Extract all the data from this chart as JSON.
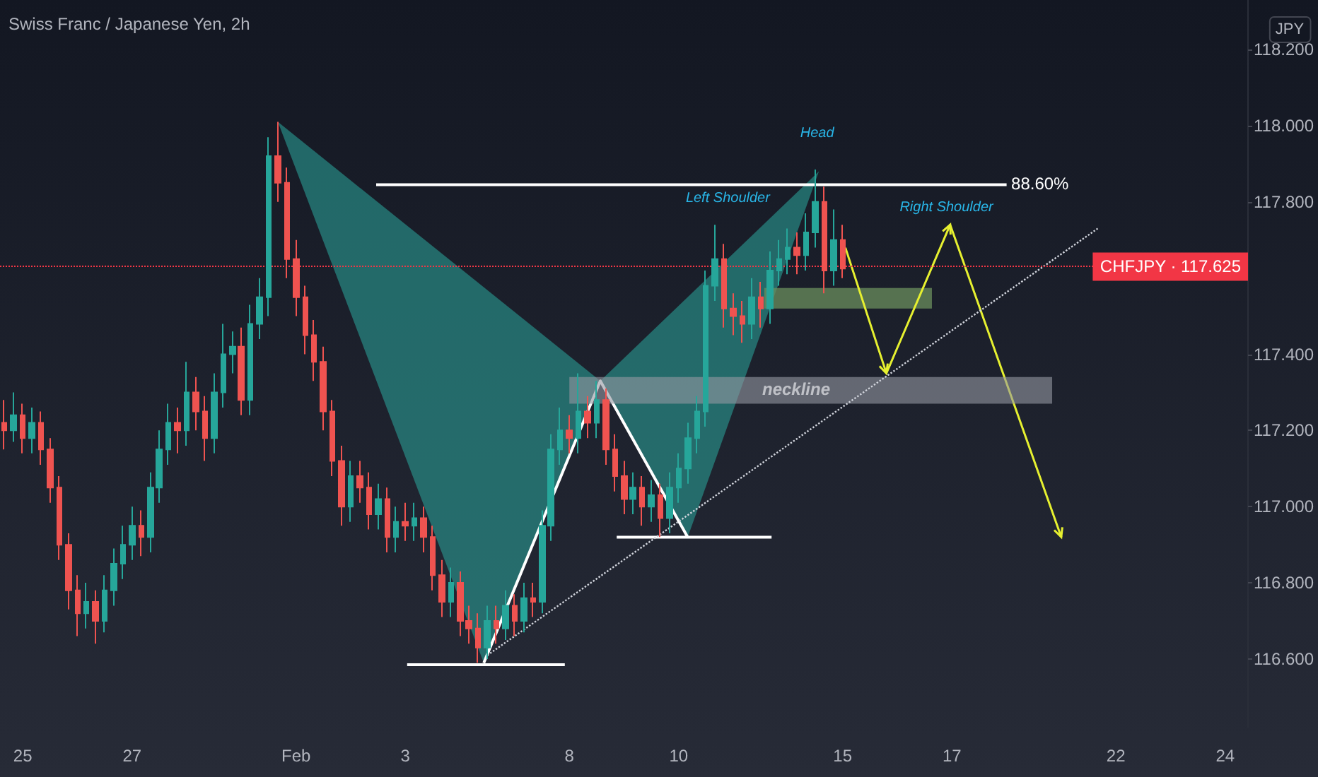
{
  "chart_data": {
    "type": "candlestick",
    "title": "Swiss Franc / Japanese Yen, 2h",
    "annotations": [
      "JPY",
      "Head",
      "Left Shoulder",
      "Right Shoulder",
      "88.60%",
      "neckline"
    ],
    "categories": [
      null,
      null,
      "25",
      null,
      null,
      null,
      null,
      null,
      null,
      null,
      null,
      null,
      null,
      null,
      "27",
      null,
      null,
      null,
      null,
      null,
      null,
      null,
      null,
      null,
      null,
      null,
      null,
      null,
      null,
      null,
      null,
      null,
      "Feb",
      null,
      null,
      null,
      null,
      null,
      null,
      null,
      null,
      null,
      null,
      null,
      "3",
      null,
      null,
      null,
      null,
      null,
      null,
      null,
      null,
      null,
      null,
      null,
      null,
      null,
      null,
      null,
      null,
      null,
      "8",
      null,
      null,
      null,
      null,
      null,
      null,
      null,
      null,
      null,
      null,
      null,
      "10",
      null,
      null,
      null,
      null,
      null,
      null,
      null,
      null,
      null,
      null,
      null,
      null,
      null,
      null,
      null,
      null,
      null,
      "15",
      null,
      null,
      null,
      null,
      null,
      null,
      null,
      null,
      null,
      null,
      null,
      "17",
      null,
      null,
      null,
      null,
      null,
      null,
      null,
      null,
      null,
      null,
      null,
      null,
      null,
      null,
      null,
      null,
      null,
      "22",
      null,
      null,
      null,
      null,
      null,
      null,
      null,
      null,
      null,
      null,
      null,
      "24",
      null,
      null
    ],
    "ohlc": [
      [
        117.22,
        117.28,
        117.15,
        117.2
      ],
      [
        117.2,
        117.3,
        117.17,
        117.24
      ],
      [
        117.24,
        117.27,
        117.14,
        117.18
      ],
      [
        117.18,
        117.26,
        117.14,
        117.22
      ],
      [
        117.22,
        117.25,
        117.11,
        117.15
      ],
      [
        117.15,
        117.18,
        117.01,
        117.05
      ],
      [
        117.05,
        117.08,
        116.86,
        116.9
      ],
      [
        116.9,
        116.93,
        116.73,
        116.78
      ],
      [
        116.78,
        116.82,
        116.66,
        116.72
      ],
      [
        116.72,
        116.8,
        116.68,
        116.75
      ],
      [
        116.75,
        116.78,
        116.64,
        116.7
      ],
      [
        116.7,
        116.82,
        116.67,
        116.78
      ],
      [
        116.78,
        116.89,
        116.74,
        116.85
      ],
      [
        116.85,
        116.95,
        116.81,
        116.9
      ],
      [
        116.9,
        117.0,
        116.86,
        116.95
      ],
      [
        116.95,
        116.99,
        116.87,
        116.92
      ],
      [
        116.92,
        117.09,
        116.88,
        117.05
      ],
      [
        117.05,
        117.2,
        117.01,
        117.15
      ],
      [
        117.15,
        117.27,
        117.11,
        117.22
      ],
      [
        117.22,
        117.26,
        117.14,
        117.2
      ],
      [
        117.2,
        117.38,
        117.16,
        117.3
      ],
      [
        117.3,
        117.34,
        117.2,
        117.25
      ],
      [
        117.25,
        117.29,
        117.12,
        117.18
      ],
      [
        117.18,
        117.35,
        117.14,
        117.3
      ],
      [
        117.3,
        117.48,
        117.26,
        117.4
      ],
      [
        117.4,
        117.46,
        117.35,
        117.42
      ],
      [
        117.42,
        117.47,
        117.24,
        117.28
      ],
      [
        117.28,
        117.53,
        117.24,
        117.48
      ],
      [
        117.48,
        117.6,
        117.44,
        117.55
      ],
      [
        117.55,
        117.97,
        117.5,
        117.92
      ],
      [
        117.92,
        118.01,
        117.8,
        117.85
      ],
      [
        117.85,
        117.89,
        117.6,
        117.65
      ],
      [
        117.65,
        117.7,
        117.5,
        117.55
      ],
      [
        117.55,
        117.58,
        117.4,
        117.45
      ],
      [
        117.45,
        117.49,
        117.33,
        117.38
      ],
      [
        117.38,
        117.42,
        117.2,
        117.25
      ],
      [
        117.25,
        117.28,
        117.08,
        117.12
      ],
      [
        117.12,
        117.16,
        116.95,
        117.0
      ],
      [
        117.0,
        117.12,
        116.96,
        117.08
      ],
      [
        117.08,
        117.12,
        117.01,
        117.05
      ],
      [
        117.05,
        117.09,
        116.94,
        116.98
      ],
      [
        116.98,
        117.06,
        116.94,
        117.02
      ],
      [
        117.02,
        117.05,
        116.88,
        116.92
      ],
      [
        116.92,
        117.0,
        116.88,
        116.96
      ],
      [
        116.96,
        117.01,
        116.91,
        116.95
      ],
      [
        116.95,
        117.01,
        116.91,
        116.97
      ],
      [
        116.97,
        117.0,
        116.88,
        116.92
      ],
      [
        116.92,
        116.95,
        116.78,
        116.82
      ],
      [
        116.82,
        116.86,
        116.71,
        116.75
      ],
      [
        116.75,
        116.84,
        116.71,
        116.8
      ],
      [
        116.8,
        116.83,
        116.66,
        116.7
      ],
      [
        116.7,
        116.74,
        116.64,
        116.68
      ],
      [
        116.68,
        116.72,
        116.59,
        116.63
      ],
      [
        116.63,
        116.74,
        116.6,
        116.7
      ],
      [
        116.7,
        116.74,
        116.64,
        116.68
      ],
      [
        116.68,
        116.78,
        116.65,
        116.74
      ],
      [
        116.74,
        116.77,
        116.66,
        116.7
      ],
      [
        116.7,
        116.8,
        116.67,
        116.76
      ],
      [
        116.76,
        116.8,
        116.71,
        116.75
      ],
      [
        116.75,
        116.99,
        116.72,
        116.95
      ],
      [
        116.95,
        117.19,
        116.91,
        117.15
      ],
      [
        117.15,
        117.26,
        117.11,
        117.2
      ],
      [
        117.2,
        117.24,
        117.14,
        117.18
      ],
      [
        117.18,
        117.35,
        117.14,
        117.25
      ],
      [
        117.25,
        117.29,
        117.18,
        117.22
      ],
      [
        117.22,
        117.33,
        117.18,
        117.28
      ],
      [
        117.28,
        117.31,
        117.11,
        117.15
      ],
      [
        117.15,
        117.19,
        117.04,
        117.08
      ],
      [
        117.08,
        117.12,
        116.98,
        117.02
      ],
      [
        117.02,
        117.09,
        116.98,
        117.05
      ],
      [
        117.05,
        117.08,
        116.95,
        117.0
      ],
      [
        117.0,
        117.07,
        116.96,
        117.03
      ],
      [
        117.03,
        117.06,
        116.92,
        116.97
      ],
      [
        116.97,
        117.09,
        116.93,
        117.05
      ],
      [
        117.05,
        117.14,
        117.01,
        117.1
      ],
      [
        117.1,
        117.22,
        117.06,
        117.18
      ],
      [
        117.18,
        117.29,
        117.14,
        117.25
      ],
      [
        117.25,
        117.62,
        117.21,
        117.58
      ],
      [
        117.58,
        117.74,
        117.54,
        117.65
      ],
      [
        117.65,
        117.69,
        117.47,
        117.52
      ],
      [
        117.52,
        117.56,
        117.45,
        117.5
      ],
      [
        117.5,
        117.54,
        117.43,
        117.48
      ],
      [
        117.48,
        117.6,
        117.44,
        117.55
      ],
      [
        117.55,
        117.59,
        117.47,
        117.52
      ],
      [
        117.52,
        117.67,
        117.48,
        117.62
      ],
      [
        117.62,
        117.7,
        117.58,
        117.65
      ],
      [
        117.65,
        117.73,
        117.61,
        117.68
      ],
      [
        117.68,
        117.72,
        117.61,
        117.66
      ],
      [
        117.66,
        117.77,
        117.62,
        117.72
      ],
      [
        117.72,
        117.885,
        117.68,
        117.8
      ],
      [
        117.8,
        117.84,
        117.56,
        117.62
      ],
      [
        117.62,
        117.78,
        117.58,
        117.7
      ],
      [
        117.7,
        117.74,
        117.6,
        117.625
      ],
      null,
      null,
      null,
      null,
      null,
      null,
      null,
      null,
      null,
      null,
      null,
      null,
      null,
      null,
      null,
      null,
      null,
      null,
      null,
      null,
      null,
      null,
      null,
      null,
      null,
      null,
      null,
      null,
      null,
      null,
      null,
      null,
      null,
      null,
      null,
      null,
      null,
      null,
      null,
      null,
      null,
      null,
      null,
      null
    ],
    "colors": [
      "#ef5350",
      "#26a69a",
      "#ef5350",
      "#26a69a",
      "#ef5350",
      "#ef5350",
      "#ef5350",
      "#ef5350",
      "#ef5350",
      "#26a69a",
      "#ef5350",
      "#26a69a",
      "#26a69a",
      "#26a69a",
      "#26a69a",
      "#ef5350",
      "#26a69a",
      "#26a69a",
      "#26a69a",
      "#ef5350",
      "#26a69a",
      "#ef5350",
      "#ef5350",
      "#26a69a",
      "#26a69a",
      "#26a69a",
      "#ef5350",
      "#26a69a",
      "#26a69a",
      "#26a69a",
      "#ef5350",
      "#ef5350",
      "#ef5350",
      "#ef5350",
      "#ef5350",
      "#ef5350",
      "#ef5350",
      "#ef5350",
      "#26a69a",
      "#ef5350",
      "#ef5350",
      "#26a69a",
      "#ef5350",
      "#26a69a",
      "#ef5350",
      "#26a69a",
      "#ef5350",
      "#ef5350",
      "#ef5350",
      "#26a69a",
      "#ef5350",
      "#ef5350",
      "#ef5350",
      "#26a69a",
      "#ef5350",
      "#26a69a",
      "#ef5350",
      "#26a69a",
      "#ef5350",
      "#26a69a",
      "#26a69a",
      "#26a69a",
      "#ef5350",
      "#26a69a",
      "#ef5350",
      "#26a69a",
      "#ef5350",
      "#ef5350",
      "#ef5350",
      "#26a69a",
      "#ef5350",
      "#26a69a",
      "#ef5350",
      "#26a69a",
      "#26a69a",
      "#26a69a",
      "#26a69a",
      "#26a69a",
      "#26a69a",
      "#ef5350",
      "#ef5350",
      "#ef5350",
      "#26a69a",
      "#ef5350",
      "#26a69a",
      "#26a69a",
      "#26a69a",
      "#ef5350",
      "#26a69a",
      "#26a69a",
      "#ef5350",
      "#26a69a",
      "#ef5350",
      null,
      null,
      null,
      null,
      null,
      null,
      null,
      null,
      null,
      null,
      null,
      null,
      null,
      null,
      null,
      null,
      null,
      null,
      null,
      null,
      null,
      null,
      null,
      null,
      null,
      null,
      null,
      null,
      null,
      null,
      null,
      null,
      null,
      null,
      null,
      null,
      null,
      null,
      null,
      null,
      null,
      null,
      null,
      null
    ],
    "series": [
      {
        "type": "line",
        "color": "#d1d4dc",
        "line_style": "dotted",
        "values": [
          null,
          null,
          null,
          null,
          null,
          null,
          null,
          null,
          null,
          null,
          null,
          null,
          null,
          null,
          null,
          null,
          null,
          null,
          null,
          null,
          null,
          null,
          null,
          null,
          null,
          null,
          null,
          null,
          null,
          null,
          null,
          null,
          null,
          null,
          null,
          null,
          null,
          null,
          null,
          null,
          null,
          null,
          null,
          null,
          null,
          null,
          null,
          null,
          null,
          null,
          null,
          null,
          null,
          116.61,
          null,
          null,
          null,
          null,
          null,
          null,
          null,
          null,
          null,
          null,
          null,
          null,
          null,
          null,
          null,
          null,
          null,
          null,
          null,
          null,
          null,
          null,
          null,
          null,
          null,
          null,
          null,
          null,
          null,
          null,
          null,
          null,
          null,
          null,
          null,
          null,
          null,
          null,
          null,
          null,
          null,
          null,
          null,
          null,
          null,
          null,
          null,
          null,
          null,
          null,
          null,
          null,
          null,
          null,
          null,
          null,
          null,
          null,
          null,
          null,
          null,
          null,
          null,
          null,
          null,
          null,
          117.73,
          null,
          null,
          null,
          null,
          null,
          null,
          null,
          null,
          null,
          null,
          null,
          null,
          null,
          null,
          null,
          null
        ]
      },
      {
        "type": "line",
        "color": "#9598a1",
        "values": [
          null,
          null,
          null,
          null,
          null,
          null,
          null,
          null,
          null,
          null,
          null,
          null,
          null,
          null,
          null,
          null,
          null,
          null,
          null,
          null,
          null,
          null,
          null,
          null,
          null,
          null,
          null,
          null,
          null,
          null,
          null,
          null,
          null,
          null,
          null,
          null,
          null,
          null,
          null,
          null,
          null,
          null,
          null,
          null,
          null,
          null,
          null,
          null,
          null,
          null,
          null,
          null,
          null,
          null,
          null,
          null,
          null,
          null,
          null,
          null,
          null,
          null,
          null,
          null,
          null,
          null,
          null,
          null,
          null,
          null,
          null,
          null,
          null,
          null,
          null,
          null,
          null,
          null,
          null,
          null,
          null,
          null,
          null,
          null,
          null,
          null,
          null,
          null,
          null,
          null,
          null,
          null,
          null,
          null,
          null,
          null,
          null,
          null,
          null,
          null,
          null,
          null,
          null,
          null,
          null,
          null,
          null,
          null,
          null,
          null,
          null,
          null,
          null,
          null,
          null,
          null,
          null,
          null,
          null,
          null,
          null,
          null,
          null,
          null,
          null,
          null,
          null,
          null,
          null,
          null,
          null,
          null,
          null,
          null,
          null,
          null,
          null
        ],
        "lower": [
          null,
          null,
          null,
          null,
          null,
          null,
          null,
          null,
          null,
          null,
          null,
          null,
          null,
          null,
          null,
          null,
          null,
          null,
          null,
          null,
          null,
          null,
          null,
          null,
          null,
          null,
          null,
          null,
          null,
          null,
          null,
          null,
          null,
          null,
          null,
          null,
          null,
          null,
          null,
          null,
          null,
          null,
          null,
          null,
          null,
          null,
          null,
          null,
          null,
          null,
          null,
          null,
          null,
          null,
          null,
          null,
          null,
          null,
          null,
          null,
          null,
          null,
          117.27,
          null,
          null,
          null,
          null,
          null,
          null,
          null,
          null,
          null,
          null,
          null,
          null,
          null,
          null,
          null,
          null,
          null,
          null,
          null,
          null,
          null,
          null,
          null,
          null,
          null,
          null,
          null,
          null,
          null,
          null,
          null,
          null,
          null,
          null,
          null,
          null,
          null,
          null,
          null,
          null,
          null,
          null,
          null,
          null,
          null,
          null,
          null,
          null,
          null,
          null,
          null,
          null,
          117.27,
          null,
          null,
          null,
          null,
          null,
          null,
          null,
          null,
          null,
          null,
          null,
          null,
          null,
          null,
          null,
          null,
          null,
          null,
          null,
          null,
          null
        ],
        "upper": [
          null,
          null,
          null,
          null,
          null,
          null,
          null,
          null,
          null,
          null,
          null,
          null,
          null,
          null,
          null,
          null,
          null,
          null,
          null,
          null,
          null,
          null,
          null,
          null,
          null,
          null,
          null,
          null,
          null,
          null,
          null,
          null,
          null,
          null,
          null,
          null,
          null,
          null,
          null,
          null,
          null,
          null,
          null,
          null,
          null,
          null,
          null,
          null,
          null,
          null,
          null,
          null,
          null,
          null,
          null,
          null,
          null,
          null,
          null,
          null,
          null,
          null,
          117.34,
          null,
          null,
          null,
          null,
          null,
          null,
          null,
          null,
          null,
          null,
          null,
          null,
          null,
          null,
          null,
          null,
          null,
          null,
          null,
          null,
          null,
          null,
          null,
          null,
          null,
          null,
          null,
          null,
          null,
          null,
          null,
          null,
          null,
          null,
          null,
          null,
          null,
          null,
          null,
          null,
          null,
          null,
          null,
          null,
          null,
          null,
          null,
          null,
          null,
          null,
          null,
          null,
          117.34,
          null,
          null,
          null,
          null,
          null,
          null,
          null,
          null,
          null,
          null,
          null,
          null,
          null,
          null,
          null,
          null,
          null,
          null,
          null,
          null,
          null
        ]
      }
    ],
    "ref_lines": [
      {
        "axis": "y",
        "value": 117.625,
        "label": "CHFJPY · 117.625",
        "color": "#f23645",
        "line_style": "dotted"
      }
    ],
    "ylim": [
      116.42,
      118.33
    ],
    "yticks": [
      {
        "value": 116.6,
        "label": "116.600"
      },
      {
        "value": 116.8,
        "label": "116.800"
      },
      {
        "value": 117,
        "label": "117.000"
      },
      {
        "value": 117.2,
        "label": "117.200"
      },
      {
        "value": 117.4,
        "label": "117.400"
      },
      {
        "value": 117.8,
        "label": "117.800"
      },
      {
        "value": 118,
        "label": "118.000"
      },
      {
        "value": 118.2,
        "label": "118.200"
      }
    ],
    "grid": false
  }
}
